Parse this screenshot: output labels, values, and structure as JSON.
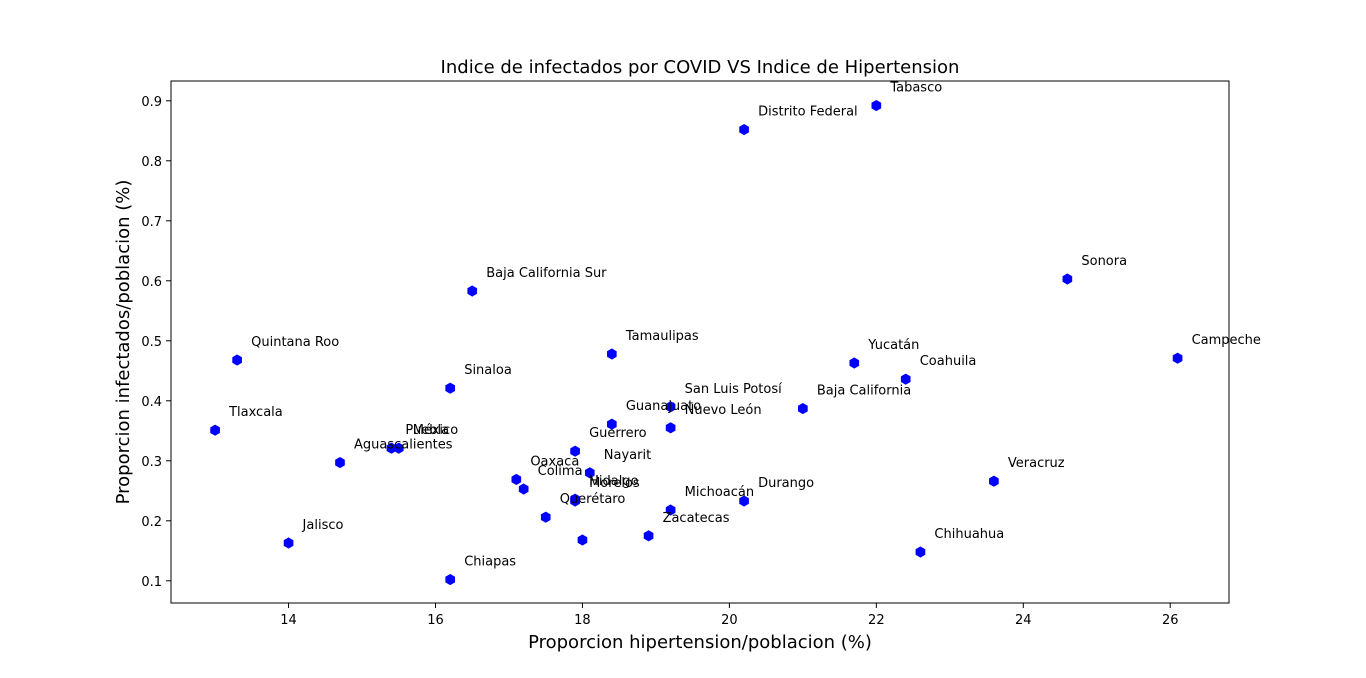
{
  "chart_data": {
    "type": "scatter",
    "title": "Indice de infectados por COVID VS Indice de Hipertension",
    "xlabel": "Proporcion hipertension/poblacion (%)",
    "ylabel": "Proporcion infectados/poblacion (%)",
    "xlim": [
      12.4,
      26.8
    ],
    "ylim": [
      0.063,
      0.933
    ],
    "xticks": [
      14,
      16,
      18,
      20,
      22,
      24,
      26
    ],
    "yticks": [
      0.1,
      0.2,
      0.3,
      0.4,
      0.5,
      0.6,
      0.7,
      0.8,
      0.9
    ],
    "grid": false,
    "marker": "hexagon",
    "marker_color": "#0000ff",
    "points": [
      {
        "label": "Tabasco",
        "x": 22.0,
        "y": 0.892
      },
      {
        "label": "Distrito Federal",
        "x": 20.2,
        "y": 0.852
      },
      {
        "label": "Sonora",
        "x": 24.6,
        "y": 0.603
      },
      {
        "label": "Baja California Sur",
        "x": 16.5,
        "y": 0.583
      },
      {
        "label": "Tamaulipas",
        "x": 18.4,
        "y": 0.478
      },
      {
        "label": "Campeche",
        "x": 26.1,
        "y": 0.471
      },
      {
        "label": "Quintana Roo",
        "x": 13.3,
        "y": 0.468
      },
      {
        "label": "Yucatán",
        "x": 21.7,
        "y": 0.463
      },
      {
        "label": "Coahuila",
        "x": 22.4,
        "y": 0.436
      },
      {
        "label": "Sinaloa",
        "x": 16.2,
        "y": 0.421
      },
      {
        "label": "San Luis Potosí",
        "x": 19.2,
        "y": 0.39
      },
      {
        "label": "Baja California",
        "x": 21.0,
        "y": 0.387
      },
      {
        "label": "Guanajuato",
        "x": 18.4,
        "y": 0.361
      },
      {
        "label": "Nuevo León",
        "x": 19.2,
        "y": 0.355
      },
      {
        "label": "Tlaxcala",
        "x": 13.0,
        "y": 0.351
      },
      {
        "label": "Puebla",
        "x": 15.4,
        "y": 0.321
      },
      {
        "label": "México",
        "x": 15.5,
        "y": 0.321
      },
      {
        "label": "Guerrero",
        "x": 17.9,
        "y": 0.316
      },
      {
        "label": "Aguascalientes",
        "x": 14.7,
        "y": 0.297
      },
      {
        "label": "Nayarit",
        "x": 18.1,
        "y": 0.28
      },
      {
        "label": "Oaxaca",
        "x": 17.1,
        "y": 0.269
      },
      {
        "label": "Veracruz",
        "x": 23.6,
        "y": 0.266
      },
      {
        "label": "Colima",
        "x": 17.2,
        "y": 0.253
      },
      {
        "label": "Hidalgo",
        "x": 17.9,
        "y": 0.236
      },
      {
        "label": "Morelos",
        "x": 17.9,
        "y": 0.233
      },
      {
        "label": "Durango",
        "x": 20.2,
        "y": 0.233
      },
      {
        "label": "Michoacán",
        "x": 19.2,
        "y": 0.218
      },
      {
        "label": "Jalisco",
        "x": 14.0,
        "y": 0.163
      },
      {
        "label": "Querétaro",
        "x": 17.5,
        "y": 0.206
      },
      {
        "label": "Zacatecas",
        "x": 18.9,
        "y": 0.175
      },
      {
        "label": "Chihuahua",
        "x": 22.6,
        "y": 0.148
      },
      {
        "label": "Chiapas",
        "x": 16.2,
        "y": 0.102
      },
      {
        "label": "",
        "x": 18.0,
        "y": 0.168
      }
    ]
  }
}
